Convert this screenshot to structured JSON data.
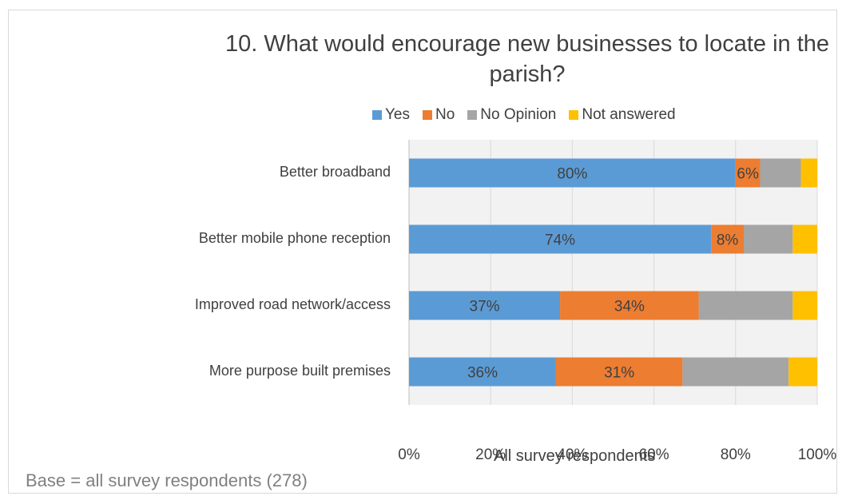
{
  "chart_data": {
    "type": "bar",
    "orientation": "horizontal",
    "stacked": true,
    "percent_stacked": true,
    "title": "10. What would encourage new businesses to locate in the parish?",
    "xlabel": "All survey respondents",
    "ylabel": "",
    "xlim": [
      0,
      100
    ],
    "x_ticks": [
      "0%",
      "20%",
      "40%",
      "60%",
      "80%",
      "100%"
    ],
    "categories": [
      "Better broadband",
      "Better mobile phone reception",
      "Improved road network/access",
      "More purpose built premises"
    ],
    "series": [
      {
        "name": "Yes",
        "color": "#5b9bd5",
        "values": [
          80,
          74,
          37,
          36
        ],
        "labels": [
          "80%",
          "74%",
          "37%",
          "36%"
        ]
      },
      {
        "name": "No",
        "color": "#ed7d31",
        "values": [
          6,
          8,
          34,
          31
        ],
        "labels": [
          "6%",
          "8%",
          "34%",
          "31%"
        ]
      },
      {
        "name": "No Opinion",
        "color": "#a5a5a5",
        "values": [
          10,
          12,
          23,
          26
        ],
        "labels": [
          "",
          "",
          "",
          ""
        ]
      },
      {
        "name": "Not answered",
        "color": "#ffc000",
        "values": [
          4,
          6,
          6,
          7
        ],
        "labels": [
          "",
          "",
          "",
          ""
        ]
      }
    ],
    "legend_position": "top",
    "grid": true,
    "plot_background": "#f2f2f2"
  },
  "footnote": "Base = all survey respondents (278)"
}
